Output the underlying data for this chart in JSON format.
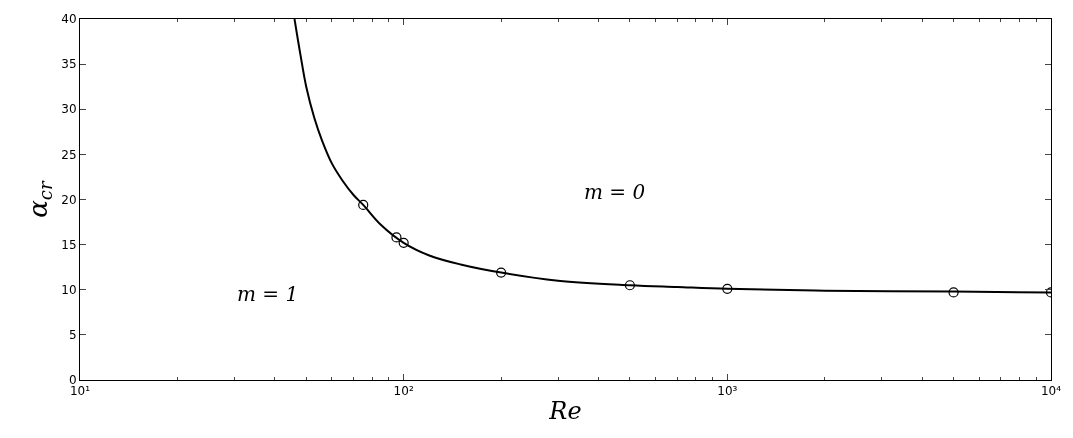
{
  "chart_data": {
    "type": "line",
    "xlabel": "Re",
    "ylabel": "α$_{cr}$",
    "log": "x",
    "xlim": [
      10,
      10000
    ],
    "ylim": [
      0,
      40
    ],
    "xticks": [
      {
        "value": 10,
        "label": "10¹"
      },
      {
        "value": 100,
        "label": "10²"
      },
      {
        "value": 1000,
        "label": "10³"
      },
      {
        "value": 10000,
        "label": "10⁴"
      }
    ],
    "yticks": [
      0,
      5,
      10,
      15,
      20,
      25,
      30,
      35,
      40
    ],
    "grid": false,
    "legend": false,
    "annotations": [
      "m = 1",
      "m = 0"
    ],
    "series": [
      {
        "color": "#000000",
        "marker": "none",
        "line_style": "solid",
        "x": [
          46,
          48,
          50,
          53,
          56,
          60,
          65,
          70,
          75,
          85,
          100,
          120,
          150,
          200,
          300,
          500,
          700,
          1000,
          2000,
          5000,
          10000
        ],
        "values": [
          40,
          36,
          32.5,
          29,
          26.5,
          24,
          22,
          20.5,
          19.4,
          17.2,
          15.2,
          13.8,
          12.8,
          11.9,
          11,
          10.5,
          10.3,
          10.1,
          9.9,
          9.8,
          9.7
        ]
      },
      {
        "type": "scatter",
        "color": "#000000",
        "marker": "circle",
        "x": [
          75,
          95,
          100,
          200,
          500,
          1000,
          5000,
          10000
        ],
        "values": [
          19.4,
          15.8,
          15.2,
          11.9,
          10.5,
          10.1,
          9.7,
          9.7
        ]
      }
    ]
  }
}
